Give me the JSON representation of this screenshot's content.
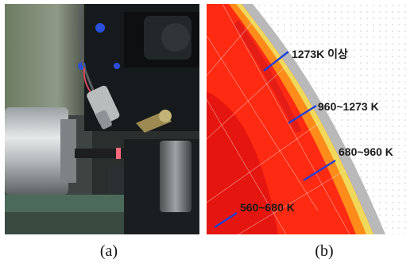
{
  "figure": {
    "panel_a": {
      "caption": "(a)"
    },
    "panel_b": {
      "caption": "(b)",
      "zones": [
        {
          "label": "1273K 이상",
          "color": "#e8e07a"
        },
        {
          "label": "960~1273 K",
          "color": "#ff8c1a"
        },
        {
          "label": "680~960 K",
          "color": "#ff2a12"
        },
        {
          "label": "560~680 K",
          "color": "#e01010"
        }
      ],
      "colors": {
        "coating": "#b9b9b9",
        "arrow": "#1f3fd8",
        "background_dots": "#c9c9c9"
      }
    }
  }
}
